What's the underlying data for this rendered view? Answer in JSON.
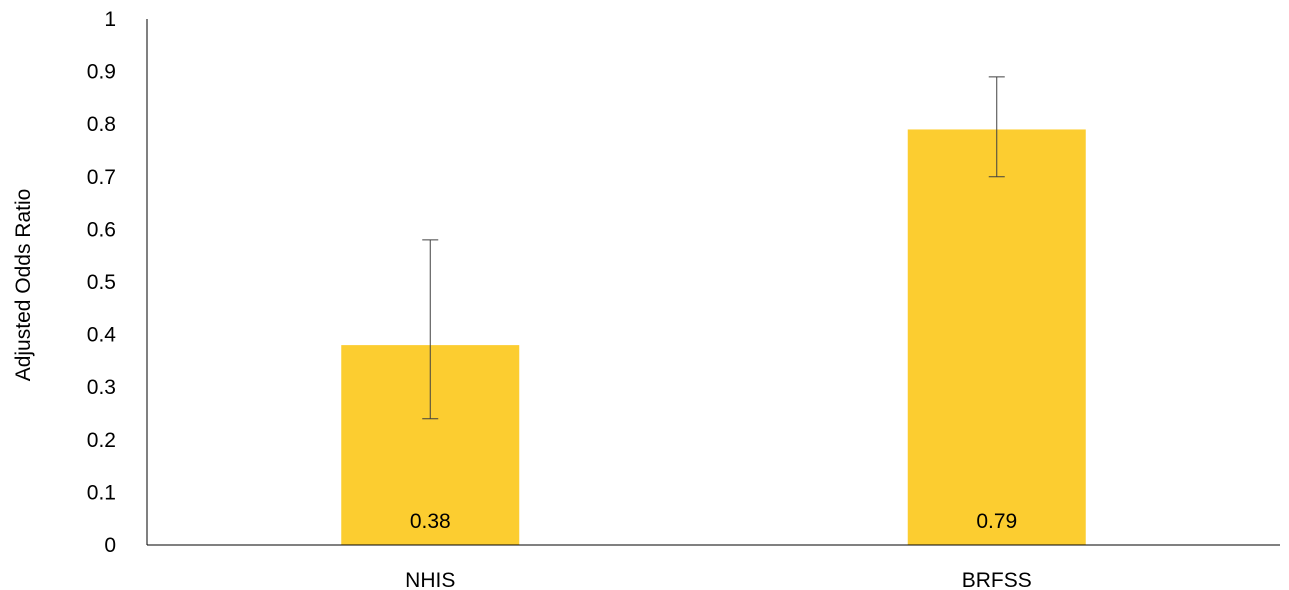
{
  "chart_data": {
    "type": "bar",
    "title": "",
    "xlabel": "",
    "ylabel": "Adjusted Odds Ratio",
    "categories": [
      "NHIS",
      "BRFSS"
    ],
    "values": [
      0.38,
      0.79
    ],
    "error_bars": [
      {
        "lower": 0.24,
        "upper": 0.58
      },
      {
        "lower": 0.7,
        "upper": 0.89
      }
    ],
    "data_labels": [
      "0.38",
      "0.79"
    ],
    "yticks": [
      "0",
      "0.1",
      "0.2",
      "0.3",
      "0.4",
      "0.5",
      "0.6",
      "0.7",
      "0.8",
      "0.9",
      "1"
    ],
    "ylim": [
      0,
      1
    ],
    "grid": false,
    "legend": "none",
    "bar_color": "#FCCD30"
  }
}
